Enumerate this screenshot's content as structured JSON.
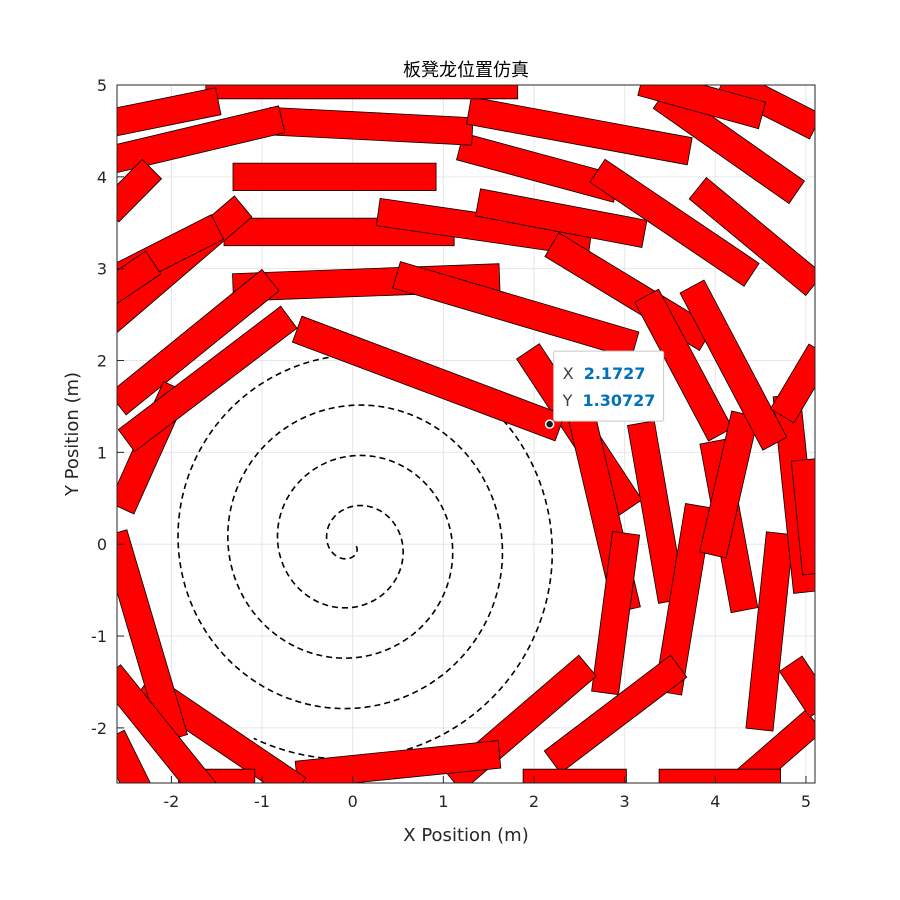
{
  "chart_data": {
    "type": "scatter",
    "title": "板凳龙位置仿真",
    "xlabel": "X Position (m)",
    "ylabel": "Y Position (m)",
    "xlim": [
      -2.6,
      5.1
    ],
    "ylim": [
      -2.6,
      5.0
    ],
    "xticks": [
      -2,
      -1,
      0,
      1,
      2,
      3,
      4,
      5
    ],
    "yticks": [
      -2,
      -1,
      0,
      1,
      2,
      3,
      4,
      5
    ],
    "xtick_labels": [
      "-2",
      "-1",
      "0",
      "1",
      "2",
      "3",
      "4",
      "5"
    ],
    "ytick_labels": [
      "-2",
      "-1",
      "0",
      "1",
      "2",
      "3",
      "4",
      "5"
    ],
    "grid": true,
    "colors": {
      "bench_fill": "#ff0000",
      "bench_edge": "#000000",
      "path": "#000000",
      "grid": "#e6e6e6",
      "datatip_value": "#0072bd"
    },
    "path": {
      "name": "spiral path",
      "style": "dashed",
      "pitch": 0.55,
      "theta_end_rad": 27.2
    },
    "benches": {
      "name": "bench segments",
      "width": 0.3,
      "head": {
        "start": [
          2.1727,
          1.30727
        ],
        "end": [
          -0.5,
          2.3
        ]
      },
      "segments": [
        {
          "x0": 1.5,
          "y0": 2.9,
          "x1": -1.2,
          "y1": 2.8
        },
        {
          "x0": 3.0,
          "y0": 2.2,
          "x1": 0.6,
          "y1": 2.9
        },
        {
          "x0": -1.0,
          "y0": 2.8,
          "x1": -2.5,
          "y1": 1.6
        },
        {
          "x0": 3.0,
          "y0": 0.5,
          "x1": 2.0,
          "y1": 2.0
        },
        {
          "x0": 3.0,
          "y0": -0.6,
          "x1": 2.5,
          "y1": 1.5
        },
        {
          "x0": 2.8,
          "y0": -1.5,
          "x1": 3.0,
          "y1": 0.0
        },
        {
          "x0": 2.5,
          "y0": -1.4,
          "x1": 1.2,
          "y1": -2.5
        },
        {
          "x0": 1.5,
          "y0": -2.3,
          "x1": -0.5,
          "y1": -2.5
        },
        {
          "x0": -0.7,
          "y0": -2.6,
          "x1": -2.2,
          "y1": -1.6
        },
        {
          "x0": -2.0,
          "y0": -2.0,
          "x1": -2.6,
          "y1": 0.0
        },
        {
          "x0": -2.5,
          "y0": 0.5,
          "x1": -2.0,
          "y1": 1.6
        },
        {
          "x0": -2.4,
          "y0": 1.2,
          "x1": -0.8,
          "y1": 2.4
        },
        {
          "x0": 1.0,
          "y0": 3.4,
          "x1": -1.3,
          "y1": 3.4
        },
        {
          "x0": 2.5,
          "y0": 3.3,
          "x1": 0.4,
          "y1": 3.6
        },
        {
          "x0": 3.8,
          "y0": 2.3,
          "x1": 2.3,
          "y1": 3.2
        },
        {
          "x0": 4.0,
          "y0": 1.3,
          "x1": 3.3,
          "y1": 2.6
        },
        {
          "x0": 4.3,
          "y0": -0.6,
          "x1": 4.0,
          "y1": 1.0
        },
        {
          "x0": 3.5,
          "y0": -0.5,
          "x1": 3.2,
          "y1": 1.2
        },
        {
          "x0": 3.5,
          "y0": -1.5,
          "x1": 3.8,
          "y1": 0.3
        },
        {
          "x0": 3.5,
          "y0": -1.4,
          "x1": 2.3,
          "y1": -2.3
        },
        {
          "x0": 4.0,
          "y0": 0.0,
          "x1": 4.3,
          "y1": 1.3
        },
        {
          "x0": 4.5,
          "y0": -1.9,
          "x1": 4.7,
          "y1": 0.0
        },
        {
          "x0": 5.0,
          "y0": -0.4,
          "x1": 4.8,
          "y1": 1.5
        },
        {
          "x0": 4.6,
          "y0": 1.2,
          "x1": 3.8,
          "y1": 2.7
        },
        {
          "x0": 3.1,
          "y0": 3.4,
          "x1": 1.5,
          "y1": 3.7
        },
        {
          "x0": 0.8,
          "y0": 4.0,
          "x1": -1.2,
          "y1": 4.0
        },
        {
          "x0": -1.3,
          "y0": 3.6,
          "x1": -2.6,
          "y1": 2.5
        },
        {
          "x0": 2.8,
          "y0": 3.9,
          "x1": 1.3,
          "y1": 4.3
        },
        {
          "x0": 4.3,
          "y0": 3.0,
          "x1": 2.8,
          "y1": 4.0
        },
        {
          "x0": 5.0,
          "y0": 2.9,
          "x1": 3.9,
          "y1": 3.8
        },
        {
          "x0": 4.8,
          "y0": 3.9,
          "x1": 3.5,
          "y1": 4.8
        },
        {
          "x0": 1.2,
          "y0": 4.5,
          "x1": -0.8,
          "y1": 4.6
        },
        {
          "x0": -0.9,
          "y0": 4.6,
          "x1": -2.6,
          "y1": 4.2
        },
        {
          "x0": 3.6,
          "y0": 4.3,
          "x1": 1.4,
          "y1": 4.7
        },
        {
          "x0": 1.7,
          "y0": 5.0,
          "x1": -1.5,
          "y1": 5.0
        },
        {
          "x0": -1.6,
          "y0": 4.8,
          "x1": -2.6,
          "y1": 4.6
        },
        {
          "x0": 5.0,
          "y0": 4.6,
          "x1": 4.2,
          "y1": 5.0
        },
        {
          "x0": 4.4,
          "y0": 4.7,
          "x1": 3.3,
          "y1": 5.0
        },
        {
          "x0": -1.6,
          "y0": 3.4,
          "x1": -2.6,
          "y1": 2.9
        },
        {
          "x0": -2.3,
          "y0": 3.0,
          "x1": -2.6,
          "y1": 2.8
        },
        {
          "x0": -2.3,
          "y0": 4.0,
          "x1": -2.6,
          "y1": 3.7
        },
        {
          "x0": 5.0,
          "y0": -2.0,
          "x1": 4.3,
          "y1": -2.6
        },
        {
          "x0": 4.6,
          "y0": -2.6,
          "x1": 3.5,
          "y1": -2.6
        },
        {
          "x0": 2.9,
          "y0": -2.6,
          "x1": 2.0,
          "y1": -2.6
        },
        {
          "x0": -1.8,
          "y0": -2.6,
          "x1": -1.2,
          "y1": -2.6
        },
        {
          "x0": -2.6,
          "y0": -1.5,
          "x1": -1.7,
          "y1": -2.6
        },
        {
          "x0": -2.6,
          "y0": -2.2,
          "x1": -2.4,
          "y1": -2.6
        },
        {
          "x0": 5.1,
          "y0": 2.0,
          "x1": 4.8,
          "y1": 1.5
        },
        {
          "x0": 5.1,
          "y0": -0.2,
          "x1": 5.0,
          "y1": 0.8
        },
        {
          "x0": 5.1,
          "y0": -1.7,
          "x1": 4.9,
          "y1": -1.4
        }
      ]
    },
    "datatip": {
      "x": 2.1727,
      "y": 1.30727,
      "x_label": "X",
      "x_value": "2.1727",
      "y_label": "Y",
      "y_value": "1.30727"
    }
  }
}
